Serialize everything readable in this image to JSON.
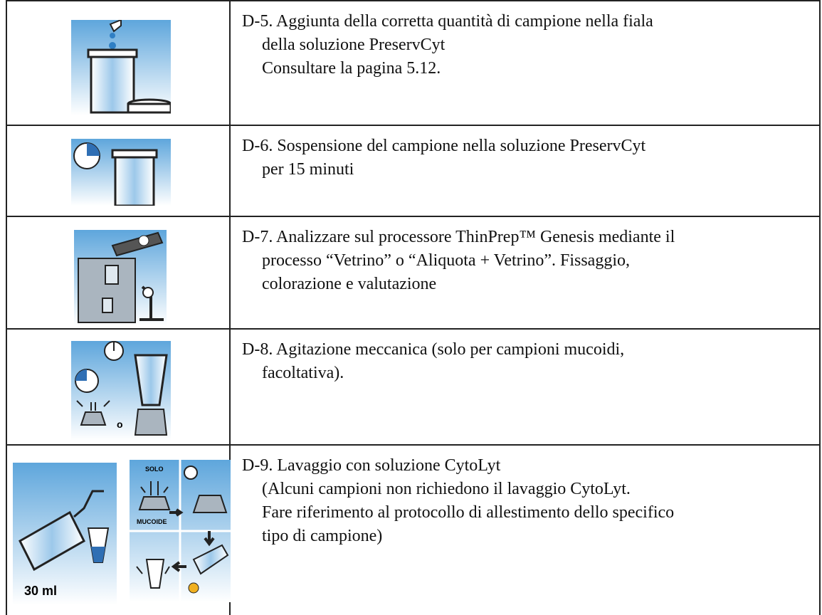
{
  "rows": [
    {
      "lines": [
        "D-5. Aggiunta della corretta quantità di campione nella fiala",
        "della soluzione PreservCyt",
        "Consultare la pagina 5.12."
      ]
    },
    {
      "lines": [
        "D-6. Sospensione del campione nella soluzione PreservCyt",
        "per 15 minuti"
      ]
    },
    {
      "lines": [
        "D-7. Analizzare sul processore ThinPrep™ Genesis mediante il",
        "processo “Vetrino” o “Aliquota + Vetrino”. Fissaggio,",
        "colorazione e valutazione"
      ]
    },
    {
      "lines": [
        "D-8. Agitazione meccanica (solo per campioni mucoidi,",
        "facoltativa)."
      ],
      "icon_label": "o"
    },
    {
      "lines": [
        "D-9. Lavaggio con soluzione CytoLyt",
        "(Alcuni campioni non richiedono il lavaggio CytoLyt.",
        "Fare riferimento al protocollo di allestimento dello specifico",
        "tipo di campione)"
      ],
      "icon_labels": [
        "30 ml",
        "SOLO",
        "MUCOIDE"
      ]
    }
  ]
}
